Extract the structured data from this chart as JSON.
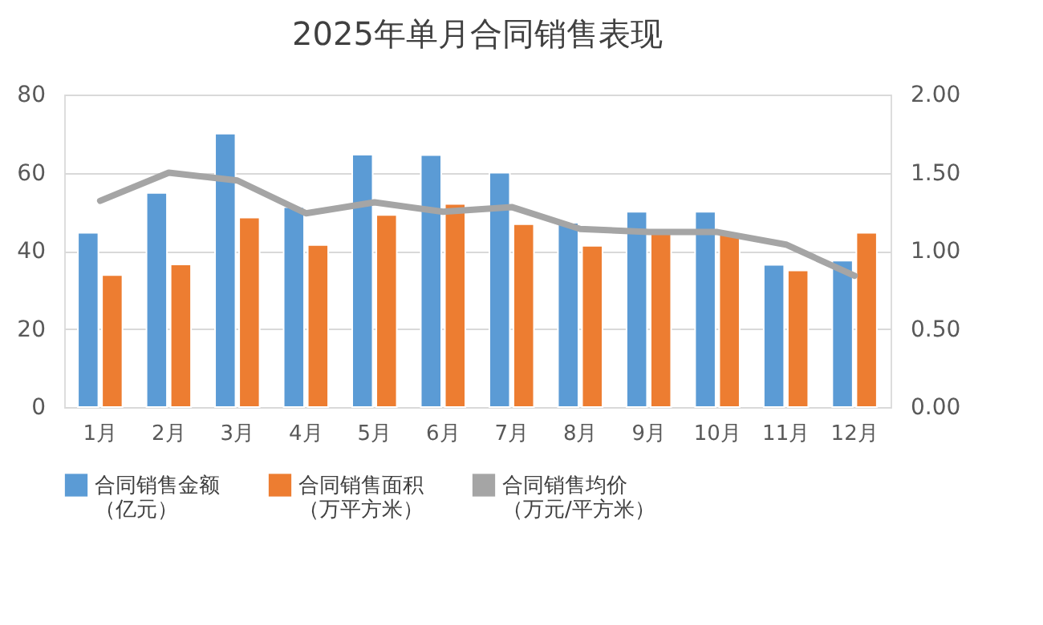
{
  "chart_data": {
    "type": "bar",
    "title": "2025年单月合同销售表现",
    "categories": [
      "1月",
      "2月",
      "3月",
      "4月",
      "5月",
      "6月",
      "7月",
      "8月",
      "9月",
      "10月",
      "11月",
      "12月"
    ],
    "series": [
      {
        "name": "合同销售金额（亿元）",
        "color": "#5b9bd5",
        "values": [
          44.6,
          54.8,
          70,
          51.2,
          64.6,
          64.5,
          60,
          47.2,
          50,
          50,
          36.4,
          37.5
        ]
      },
      {
        "name": "合同销售面积（万平方米）",
        "color": "#ed7d31",
        "values": [
          33.8,
          36.5,
          48.5,
          41.5,
          49.2,
          52,
          46.8,
          41.3,
          44.6,
          44.4,
          35,
          44.6
        ]
      },
      {
        "name": "合同销售均价（万元/平方米）",
        "color": "#a5a5a5",
        "type": "line",
        "axis": "y2",
        "values": [
          1.32,
          1.5,
          1.45,
          1.24,
          1.31,
          1.25,
          1.28,
          1.14,
          1.12,
          1.12,
          1.04,
          0.84
        ]
      }
    ],
    "ylim": [
      0,
      80
    ],
    "yticks": [
      0,
      20,
      40,
      60,
      80
    ],
    "y2lim": [
      0,
      2
    ],
    "y2ticks": [
      {
        "value": 0,
        "label": "0.00"
      },
      {
        "value": 0.5,
        "label": "0.50"
      },
      {
        "value": 1,
        "label": "1.00"
      },
      {
        "value": 1.5,
        "label": "1.50"
      },
      {
        "value": 2,
        "label": "2.00"
      }
    ],
    "grid": "y",
    "legend": "bottom",
    "marker": "none",
    "line_style": "solid"
  }
}
